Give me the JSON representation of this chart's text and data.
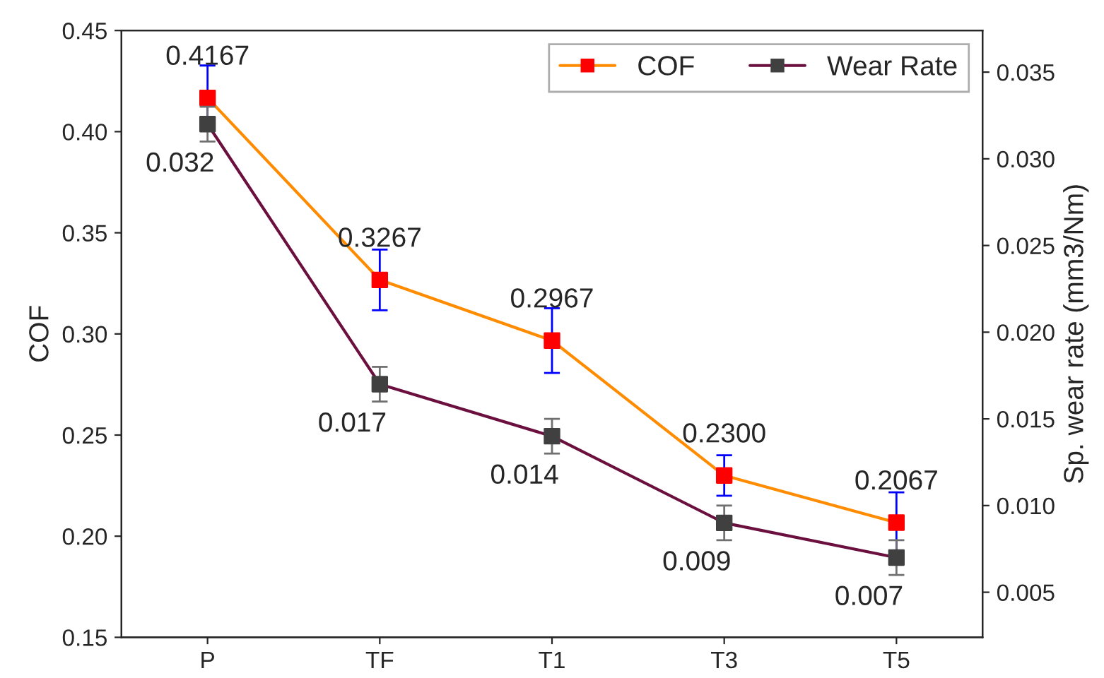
{
  "chart_data": {
    "type": "line",
    "categories": [
      "P",
      "TF",
      "T1",
      "T3",
      "T5"
    ],
    "ylabel": "COF",
    "y2label": "Sp. wear rate (mm3/Nm)",
    "ylim": [
      0.15,
      0.45
    ],
    "yticks": [
      0.15,
      {
        "value": 0.2,
        "label": "0.20"
      },
      0.25,
      {
        "value": 0.3,
        "label": "0.30"
      },
      0.35,
      {
        "value": 0.4,
        "label": "0.40"
      },
      0.45
    ],
    "y2lim": [
      0.0024,
      0.0374
    ],
    "y2ticks": [
      0.005,
      {
        "value": 0.01,
        "label": "0.010"
      },
      0.015,
      {
        "value": 0.02,
        "label": "0.020"
      },
      0.025,
      {
        "value": 0.03,
        "label": "0.030"
      },
      0.035
    ],
    "legend": "top right",
    "marker": "square",
    "line_style": "solid",
    "grid": false,
    "series": [
      {
        "name": "COF",
        "color": "#ff8c00",
        "colors": [
          "#ff0000",
          "#ff0000",
          "#ff0000",
          "#ff0000",
          "#ff0000"
        ],
        "values": [
          0.4167,
          0.3267,
          0.2967,
          0.23,
          0.2067
        ],
        "errors": [
          0.016,
          0.015,
          0.016,
          0.01,
          0.015
        ],
        "value_labels": [
          "0.4167",
          "0.3267",
          "0.2967",
          "0.2300",
          "0.2067"
        ]
      },
      {
        "name": "Wear Rate",
        "color": "#6b0f3f",
        "colors": [
          "#404040",
          "#404040",
          "#404040",
          "#404040",
          "#404040"
        ],
        "axis": "y2",
        "values": [
          0.032,
          0.017,
          0.014,
          0.009,
          0.007
        ],
        "errors": [
          0.001,
          0.001,
          0.001,
          0.001,
          0.001
        ],
        "value_labels": [
          "0.032",
          "0.017",
          "0.014",
          "0.009",
          "0.007"
        ]
      }
    ]
  }
}
